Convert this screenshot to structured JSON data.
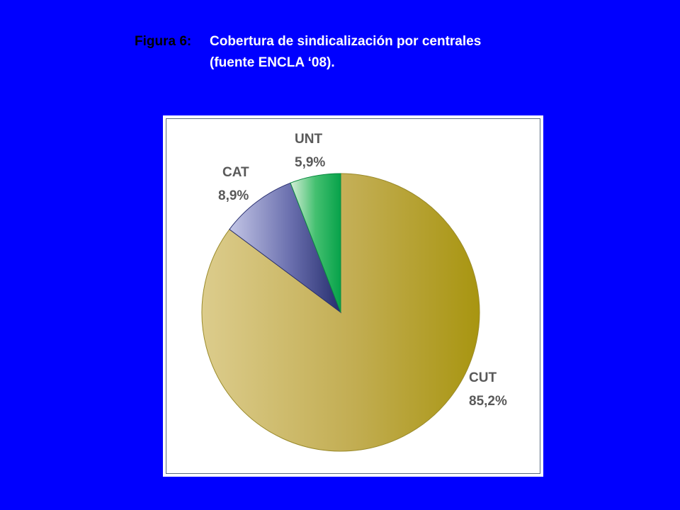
{
  "title": {
    "figure_label": "Figura 6:",
    "line1": "Cobertura de sindicalización por centrales",
    "line2": "(fuente ENCLA ‘08)."
  },
  "colors": {
    "background": "#0000ff",
    "CUT": "#b8a23a",
    "CAT": "#4a5290",
    "UNT": "#1db356"
  },
  "chart_data": {
    "type": "pie",
    "title": "",
    "slices": [
      {
        "label": "CUT",
        "value": 85.2,
        "value_label": "85,2%"
      },
      {
        "label": "CAT",
        "value": 8.9,
        "value_label": "8,9%"
      },
      {
        "label": "UNT",
        "value": 5.9,
        "value_label": "5,9%"
      }
    ]
  }
}
